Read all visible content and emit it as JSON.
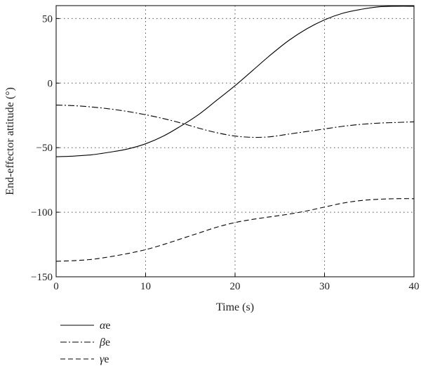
{
  "chart_data": {
    "type": "line",
    "title": "",
    "xlabel": "Time (s)",
    "ylabel": "End-effector attitude (°)",
    "xlim": [
      0,
      40
    ],
    "ylim": [
      -150,
      60
    ],
    "xticks": [
      0,
      10,
      20,
      30,
      40
    ],
    "xtick_labels": [
      "0",
      "10",
      "20",
      "30",
      "40"
    ],
    "yticks": [
      -150,
      -100,
      -50,
      0,
      50
    ],
    "ytick_labels": [
      "−150",
      "−100",
      "−50",
      "0",
      "50"
    ],
    "grid": true,
    "legend_position": "bottom-left",
    "x": [
      0,
      2,
      4,
      6,
      8,
      10,
      12,
      14,
      16,
      18,
      20,
      22,
      24,
      26,
      28,
      30,
      32,
      34,
      36,
      38,
      40
    ],
    "series": [
      {
        "name": "αe",
        "greek": "α",
        "suffix": "e",
        "style": "solid",
        "values": [
          -57,
          -56.5,
          -55.5,
          -53.5,
          -51,
          -47,
          -41,
          -33,
          -24,
          -13,
          -2,
          10,
          22,
          33,
          42,
          49,
          54,
          57,
          59,
          59.5,
          59.5
        ]
      },
      {
        "name": "βe",
        "greek": "β",
        "suffix": "e",
        "style": "dashdot",
        "values": [
          -17,
          -17.5,
          -18.5,
          -20,
          -22,
          -24.5,
          -27.5,
          -31,
          -35,
          -38.5,
          -41,
          -42,
          -41.5,
          -39.5,
          -37.5,
          -35.5,
          -33.5,
          -32,
          -31,
          -30.5,
          -30
        ]
      },
      {
        "name": "γe",
        "greek": "γ",
        "suffix": "e",
        "style": "dashed",
        "values": [
          -138,
          -137.5,
          -136.5,
          -134.5,
          -132,
          -129,
          -125,
          -120.5,
          -116,
          -111.5,
          -108,
          -105.5,
          -103.5,
          -101.5,
          -99,
          -96,
          -93,
          -91,
          -90,
          -89.5,
          -89.5
        ]
      }
    ]
  }
}
